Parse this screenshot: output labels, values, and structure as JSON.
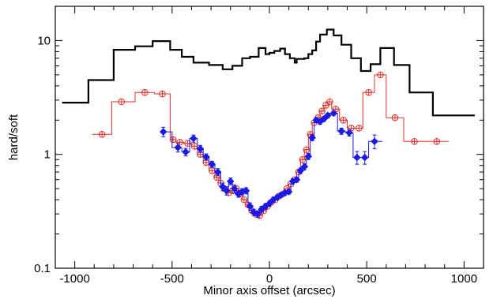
{
  "chart_data": {
    "type": "line",
    "title": "",
    "xlabel": "Minor axis offset (arcsec)",
    "ylabel": "hard/soft",
    "xlim": [
      -1100,
      1100
    ],
    "ylim": [
      0.1,
      20
    ],
    "yscale": "log",
    "x_ticks": [
      {
        "value": -1000,
        "label": "-1000"
      },
      {
        "value": -500,
        "label": "-500"
      },
      {
        "value": 0,
        "label": "0"
      },
      {
        "value": 500,
        "label": "500"
      },
      {
        "value": 1000,
        "label": "1000"
      }
    ],
    "y_ticks": [
      {
        "value": 0.1,
        "label": "0.1"
      },
      {
        "value": 1,
        "label": "1"
      },
      {
        "value": 10,
        "label": "10"
      }
    ],
    "grid": false,
    "legend": "none",
    "series": [
      {
        "style": "black-step",
        "color": "#000000",
        "edges": [
          -1065,
          -930,
          -800,
          -690,
          -600,
          -510,
          -450,
          -390,
          -310,
          -240,
          -190,
          -140,
          -100,
          -55,
          -20,
          0,
          25,
          55,
          80,
          105,
          130,
          140,
          180,
          200,
          220,
          240,
          260,
          295,
          330,
          370,
          420,
          470,
          520,
          570,
          640,
          720,
          840,
          980,
          1055
        ],
        "values": [
          2.85,
          4.5,
          8.3,
          8.9,
          9.9,
          8.3,
          7.2,
          6.4,
          6.1,
          5.6,
          6.0,
          7.0,
          7.2,
          8.6,
          7.6,
          7.8,
          8.1,
          8.5,
          7.6,
          7.0,
          6.4,
          6.9,
          7.0,
          7.6,
          8.2,
          9.8,
          11.3,
          12.5,
          11.1,
          9.2,
          7.0,
          5.4,
          6.2,
          8.6,
          6.1,
          3.5,
          2.2,
          2.2
        ]
      },
      {
        "style": "red-open-circle",
        "color": "#e0302a",
        "edges": [
          -910,
          -810,
          -690,
          -590,
          -510,
          -480,
          -440,
          -400,
          -370,
          -340,
          -310,
          -280,
          -260,
          -240,
          -220,
          -200,
          -180,
          -160,
          -140,
          -120,
          -100,
          -80,
          -60,
          -40,
          -20,
          0,
          20,
          40,
          60,
          80,
          100,
          120,
          140,
          160,
          180,
          200,
          220,
          240,
          260,
          280,
          300,
          320,
          360,
          400,
          440,
          480,
          540,
          600,
          690,
          800,
          920
        ],
        "x": [
          -860,
          -760,
          -640,
          -550,
          -495,
          -460,
          -420,
          -385,
          -355,
          -325,
          -295,
          -270,
          -250,
          -230,
          -210,
          -190,
          -170,
          -150,
          -130,
          -110,
          -90,
          -70,
          -50,
          -30,
          -10,
          10,
          30,
          50,
          70,
          90,
          110,
          130,
          150,
          170,
          190,
          210,
          230,
          250,
          270,
          290,
          310,
          340,
          380,
          420,
          460,
          510,
          570,
          645,
          745,
          860
        ],
        "y": [
          1.5,
          2.9,
          3.5,
          3.4,
          1.35,
          1.28,
          1.25,
          1.18,
          1.0,
          0.85,
          0.72,
          0.63,
          0.56,
          0.5,
          0.46,
          0.48,
          0.5,
          0.45,
          0.4,
          0.36,
          0.32,
          0.3,
          0.29,
          0.32,
          0.35,
          0.38,
          0.4,
          0.43,
          0.45,
          0.5,
          0.55,
          0.6,
          0.7,
          0.9,
          1.1,
          1.5,
          1.9,
          2.1,
          2.4,
          2.7,
          2.9,
          2.5,
          2.0,
          1.7,
          1.7,
          3.5,
          5.0,
          2.1,
          1.3,
          1.3
        ],
        "xerr": [
          50,
          50,
          60,
          40,
          15,
          20,
          20,
          15,
          15,
          15,
          15,
          10,
          10,
          10,
          10,
          10,
          10,
          10,
          10,
          10,
          10,
          10,
          10,
          10,
          10,
          10,
          10,
          10,
          10,
          10,
          10,
          10,
          10,
          10,
          10,
          10,
          10,
          10,
          10,
          10,
          10,
          20,
          20,
          20,
          20,
          30,
          30,
          45,
          55,
          60
        ]
      },
      {
        "style": "blue-filled-diamond",
        "color": "#1a1ae6",
        "edges": [
          -560,
          -500,
          -450,
          -410,
          -370,
          -340,
          -310,
          -280,
          -250,
          -230,
          -210,
          -190,
          -170,
          -150,
          -130,
          -110,
          -90,
          -70,
          -50,
          -30,
          -10,
          10,
          30,
          50,
          70,
          90,
          110,
          130,
          150,
          170,
          190,
          210,
          230,
          250,
          270,
          290,
          310,
          350,
          390,
          430,
          470,
          510,
          580
        ],
        "x": [
          -545,
          -470,
          -430,
          -390,
          -355,
          -325,
          -295,
          -265,
          -240,
          -220,
          -200,
          -180,
          -160,
          -140,
          -120,
          -100,
          -80,
          -60,
          -40,
          -20,
          0,
          20,
          40,
          60,
          80,
          100,
          120,
          140,
          160,
          180,
          200,
          220,
          240,
          260,
          280,
          300,
          330,
          370,
          410,
          450,
          490,
          540
        ],
        "y": [
          1.58,
          1.15,
          1.05,
          1.38,
          1.12,
          0.95,
          0.82,
          0.7,
          0.52,
          0.48,
          0.58,
          0.5,
          0.45,
          0.47,
          0.48,
          0.35,
          0.31,
          0.3,
          0.33,
          0.35,
          0.37,
          0.4,
          0.42,
          0.44,
          0.46,
          0.47,
          0.58,
          0.6,
          0.72,
          0.78,
          0.96,
          1.4,
          2.0,
          1.94,
          2.05,
          2.2,
          2.3,
          1.6,
          1.55,
          0.94,
          0.94,
          1.3
        ],
        "yerr": [
          0.15,
          0.1,
          0.08,
          0.1,
          0.08,
          0.06,
          0.05,
          0.05,
          0.04,
          0.04,
          0.04,
          0.04,
          0.03,
          0.03,
          0.03,
          0.025,
          0.02,
          0.02,
          0.02,
          0.02,
          0.02,
          0.02,
          0.02,
          0.02,
          0.02,
          0.02,
          0.03,
          0.03,
          0.04,
          0.05,
          0.06,
          0.08,
          0.1,
          0.1,
          0.1,
          0.1,
          0.1,
          0.1,
          0.1,
          0.12,
          0.12,
          0.18
        ]
      }
    ]
  }
}
